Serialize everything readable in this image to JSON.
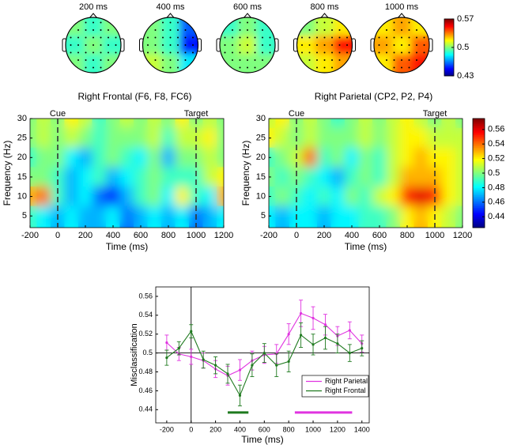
{
  "chart_data": [
    {
      "type": "topomap",
      "maps": [
        {
          "title": "200 ms",
          "values": [
            [
              0.5,
              0.49,
              0.5
            ],
            [
              0.49,
              0.5,
              0.49
            ],
            [
              0.5,
              0.49,
              0.5
            ]
          ]
        },
        {
          "title": "400 ms",
          "values": [
            [
              0.5,
              0.49,
              0.46
            ],
            [
              0.5,
              0.49,
              0.45
            ],
            [
              0.51,
              0.5,
              0.48
            ]
          ]
        },
        {
          "title": "600 ms",
          "values": [
            [
              0.49,
              0.5,
              0.49
            ],
            [
              0.5,
              0.51,
              0.49
            ],
            [
              0.5,
              0.5,
              0.5
            ]
          ]
        },
        {
          "title": "800 ms",
          "values": [
            [
              0.5,
              0.51,
              0.52
            ],
            [
              0.52,
              0.53,
              0.55
            ],
            [
              0.51,
              0.52,
              0.53
            ]
          ]
        },
        {
          "title": "1000 ms",
          "values": [
            [
              0.52,
              0.53,
              0.52
            ],
            [
              0.53,
              0.52,
              0.54
            ],
            [
              0.52,
              0.54,
              0.55
            ]
          ]
        }
      ],
      "zlim": [
        0.43,
        0.57
      ],
      "zticks": [
        0.43,
        0.5,
        0.57
      ],
      "colormap": "jet"
    },
    {
      "type": "heatmap",
      "title": "Right Frontal (F6, F8, FC6)",
      "xlabel": "Time (ms)",
      "ylabel": "Frequency (Hz)",
      "x": [
        -200,
        -100,
        0,
        100,
        200,
        300,
        400,
        500,
        600,
        700,
        800,
        900,
        1000,
        1100,
        1200
      ],
      "y": [
        30,
        25,
        20,
        15,
        10,
        5
      ],
      "values": [
        [
          0.5,
          0.51,
          0.5,
          0.52,
          0.51,
          0.49,
          0.5,
          0.51,
          0.5,
          0.51,
          0.5,
          0.52,
          0.5,
          0.51,
          0.5
        ],
        [
          0.5,
          0.51,
          0.5,
          0.51,
          0.5,
          0.49,
          0.5,
          0.5,
          0.5,
          0.51,
          0.49,
          0.51,
          0.51,
          0.52,
          0.5
        ],
        [
          0.49,
          0.5,
          0.5,
          0.48,
          0.47,
          0.49,
          0.5,
          0.49,
          0.48,
          0.5,
          0.47,
          0.5,
          0.5,
          0.51,
          0.5
        ],
        [
          0.5,
          0.5,
          0.49,
          0.47,
          0.48,
          0.49,
          0.47,
          0.48,
          0.49,
          0.5,
          0.49,
          0.49,
          0.49,
          0.51,
          0.52
        ],
        [
          0.53,
          0.54,
          0.49,
          0.47,
          0.48,
          0.46,
          0.45,
          0.47,
          0.49,
          0.5,
          0.48,
          0.52,
          0.49,
          0.48,
          0.53
        ],
        [
          0.49,
          0.48,
          0.47,
          0.48,
          0.47,
          0.47,
          0.48,
          0.46,
          0.47,
          0.48,
          0.47,
          0.48,
          0.46,
          0.47,
          0.48
        ]
      ],
      "xlim": [
        -200,
        1200
      ],
      "xticks": [
        -200,
        0,
        200,
        400,
        600,
        800,
        1000,
        1200
      ],
      "ylim": [
        2,
        30
      ],
      "yticks": [
        5,
        10,
        15,
        20,
        25,
        30
      ],
      "zlim": [
        0.425,
        0.575
      ],
      "colormap": "jet",
      "colorbar": false,
      "annotations": [
        {
          "text": "Cue",
          "x": 0
        },
        {
          "text": "Target",
          "x": 1000
        }
      ]
    },
    {
      "type": "heatmap",
      "title": "Right Parietal (CP2, P2, P4)",
      "xlabel": "Time (ms)",
      "ylabel": "Frequency (Hz)",
      "x": [
        -200,
        -100,
        0,
        100,
        200,
        300,
        400,
        500,
        600,
        700,
        800,
        900,
        1000,
        1100,
        1200
      ],
      "y": [
        30,
        25,
        20,
        15,
        10,
        5
      ],
      "values": [
        [
          0.51,
          0.52,
          0.5,
          0.51,
          0.5,
          0.49,
          0.5,
          0.51,
          0.5,
          0.51,
          0.52,
          0.51,
          0.5,
          0.51,
          0.5
        ],
        [
          0.52,
          0.51,
          0.5,
          0.51,
          0.5,
          0.5,
          0.5,
          0.51,
          0.5,
          0.51,
          0.52,
          0.52,
          0.51,
          0.51,
          0.51
        ],
        [
          0.49,
          0.5,
          0.51,
          0.54,
          0.49,
          0.5,
          0.48,
          0.5,
          0.49,
          0.51,
          0.52,
          0.53,
          0.52,
          0.52,
          0.51
        ],
        [
          0.5,
          0.49,
          0.5,
          0.49,
          0.48,
          0.47,
          0.49,
          0.5,
          0.49,
          0.51,
          0.53,
          0.53,
          0.53,
          0.52,
          0.51
        ],
        [
          0.49,
          0.5,
          0.49,
          0.48,
          0.49,
          0.48,
          0.5,
          0.49,
          0.51,
          0.52,
          0.55,
          0.56,
          0.55,
          0.52,
          0.51
        ],
        [
          0.48,
          0.47,
          0.48,
          0.48,
          0.47,
          0.48,
          0.48,
          0.49,
          0.49,
          0.5,
          0.52,
          0.53,
          0.52,
          0.51,
          0.5
        ]
      ],
      "xlim": [
        -200,
        1200
      ],
      "xticks": [
        -200,
        0,
        200,
        400,
        600,
        800,
        1000,
        1200
      ],
      "ylim": [
        2,
        30
      ],
      "yticks": [
        5,
        10,
        15,
        20,
        25,
        30
      ],
      "zlim": [
        0.425,
        0.575
      ],
      "zticks": [
        0.44,
        0.46,
        0.48,
        0.5,
        0.52,
        0.54,
        0.56
      ],
      "colormap": "jet",
      "colorbar": true,
      "annotations": [
        {
          "text": "Cue",
          "x": 0
        },
        {
          "text": "Target",
          "x": 1000
        }
      ]
    },
    {
      "type": "line",
      "xlabel": "Time (ms)",
      "ylabel": "Misclassification",
      "x": [
        -200,
        -100,
        0,
        100,
        200,
        300,
        400,
        500,
        600,
        700,
        800,
        900,
        1000,
        1100,
        1200,
        1300,
        1400
      ],
      "series": [
        {
          "name": "Right Parietal",
          "color": "#e033e0",
          "values": [
            0.511,
            0.499,
            0.496,
            0.492,
            0.483,
            0.476,
            0.482,
            0.492,
            0.498,
            0.499,
            0.52,
            0.542,
            0.537,
            0.53,
            0.518,
            0.524,
            0.51
          ],
          "errors": [
            0.008,
            0.007,
            0.008,
            0.008,
            0.009,
            0.01,
            0.011,
            0.01,
            0.009,
            0.01,
            0.011,
            0.014,
            0.012,
            0.011,
            0.01,
            0.009,
            0.009
          ]
        },
        {
          "name": "Right Frontal",
          "color": "#1f7a1f",
          "values": [
            0.495,
            0.505,
            0.523,
            0.493,
            0.487,
            0.478,
            0.455,
            0.487,
            0.5,
            0.487,
            0.491,
            0.519,
            0.509,
            0.516,
            0.51,
            0.5,
            0.505
          ],
          "errors": [
            0.008,
            0.007,
            0.007,
            0.009,
            0.009,
            0.01,
            0.011,
            0.012,
            0.01,
            0.012,
            0.011,
            0.013,
            0.011,
            0.012,
            0.01,
            0.009,
            0.008
          ]
        }
      ],
      "xlim": [
        -290,
        1460
      ],
      "xticks": [
        -200,
        0,
        200,
        400,
        600,
        800,
        1000,
        1200,
        1400
      ],
      "ylim": [
        0.426,
        0.57
      ],
      "yticks": [
        0.44,
        0.46,
        0.48,
        0.5,
        0.52,
        0.54,
        0.56
      ],
      "reference_lines": {
        "x": 0,
        "y": 0.5
      },
      "significance": [
        {
          "color": "#1f7a1f",
          "x": [
            300,
            470
          ],
          "y": 0.437
        },
        {
          "color": "#e033e0",
          "x": [
            850,
            1320
          ],
          "y": 0.437
        }
      ],
      "legend": "lower right"
    }
  ]
}
